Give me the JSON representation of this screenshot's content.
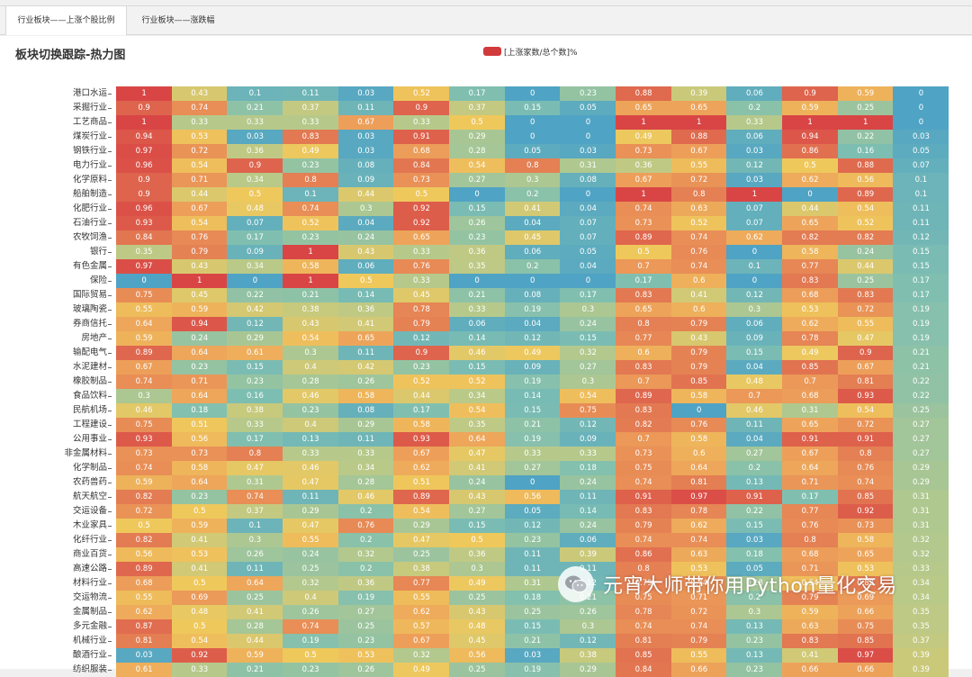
{
  "tabs": [
    {
      "label": "行业板块——上涨个股比例",
      "active": true
    },
    {
      "label": "行业板块——涨跌幅",
      "active": false
    }
  ],
  "page_title": "板块切换跟踪-热力图",
  "legend": {
    "label": "[上涨家数/总个数]%",
    "color": "#d13a3a"
  },
  "watermark": "元宵大师带你用Python量化交易",
  "palette": [
    "#4fa3c4",
    "#7fbfb1",
    "#b7c98a",
    "#efc85c",
    "#eda05a",
    "#e27852",
    "#d94545"
  ],
  "chart_data": {
    "type": "heatmap",
    "value_range": [
      0,
      1
    ],
    "rows": [
      "港口水运",
      "采掘行业",
      "工艺商品",
      "煤炭行业",
      "钢铁行业",
      "电力行业",
      "化学原料",
      "船舶制造",
      "化肥行业",
      "石油行业",
      "农牧饲渔",
      "银行",
      "有色金属",
      "保险",
      "国际贸易",
      "玻璃陶瓷",
      "券商信托",
      "房地产",
      "输配电气",
      "水泥建材",
      "橡胶制品",
      "食品饮料",
      "民航机场",
      "工程建设",
      "公用事业",
      "非金属材料",
      "化学制品",
      "农药兽药",
      "航天航空",
      "交运设备",
      "木业家具",
      "化纤行业",
      "商业百货",
      "高速公路",
      "材料行业",
      "交运物流",
      "金属制品",
      "多元金融",
      "机械行业",
      "酿酒行业",
      "纺织服装"
    ],
    "values": [
      [
        1,
        0.43,
        0.1,
        0.11,
        0.03,
        0.52,
        0.17,
        0,
        0.23,
        0.88,
        0.39,
        0.06,
        0.9,
        0.59,
        0
      ],
      [
        0.9,
        0.74,
        0.21,
        0.37,
        0.11,
        0.9,
        0.37,
        0.15,
        0.05,
        0.65,
        0.65,
        0.2,
        0.59,
        0.25,
        0
      ],
      [
        1,
        0.33,
        0.33,
        0.33,
        0.67,
        0.33,
        0.5,
        0,
        0,
        1,
        1,
        0.33,
        1,
        1,
        0
      ],
      [
        0.94,
        0.53,
        0.03,
        0.83,
        0.03,
        0.91,
        0.29,
        0,
        0,
        0.49,
        0.88,
        0.06,
        0.94,
        0.22,
        0.03
      ],
      [
        0.97,
        0.72,
        0.36,
        0.49,
        0.03,
        0.68,
        0.28,
        0.05,
        0.03,
        0.73,
        0.67,
        0.03,
        0.86,
        0.16,
        0.05
      ],
      [
        0.96,
        0.54,
        0.9,
        0.23,
        0.08,
        0.84,
        0.54,
        0.8,
        0.31,
        0.36,
        0.55,
        0.12,
        0.5,
        0.88,
        0.07
      ],
      [
        0.9,
        0.71,
        0.34,
        0.8,
        0.09,
        0.73,
        0.27,
        0.3,
        0.08,
        0.67,
        0.72,
        0.03,
        0.62,
        0.56,
        0.1
      ],
      [
        0.9,
        0.44,
        0.5,
        0.1,
        0.44,
        0.5,
        0,
        0.2,
        0,
        1,
        0.8,
        1,
        0,
        0.89,
        0.1
      ],
      [
        0.96,
        0.67,
        0.48,
        0.74,
        0.3,
        0.92,
        0.15,
        0.41,
        0.04,
        0.74,
        0.63,
        0.07,
        0.44,
        0.54,
        0.11
      ],
      [
        0.93,
        0.54,
        0.07,
        0.52,
        0.04,
        0.92,
        0.26,
        0.04,
        0.07,
        0.73,
        0.52,
        0.07,
        0.65,
        0.52,
        0.11
      ],
      [
        0.84,
        0.76,
        0.17,
        0.23,
        0.24,
        0.65,
        0.23,
        0.45,
        0.07,
        0.89,
        0.74,
        0.62,
        0.82,
        0.82,
        0.12
      ],
      [
        0.35,
        0.79,
        0.09,
        1,
        0.43,
        0.33,
        0.36,
        0.06,
        0.05,
        0.5,
        0.76,
        0,
        0.58,
        0.24,
        0.15
      ],
      [
        0.97,
        0.43,
        0.34,
        0.58,
        0.06,
        0.76,
        0.35,
        0.2,
        0.04,
        0.7,
        0.74,
        0.1,
        0.77,
        0.44,
        0.15
      ],
      [
        0,
        1,
        0,
        1,
        0.5,
        0.33,
        0,
        0,
        0,
        0.17,
        0.6,
        0,
        0.83,
        0.25,
        0.17
      ],
      [
        0.75,
        0.45,
        0.22,
        0.21,
        0.14,
        0.45,
        0.21,
        0.08,
        0.17,
        0.83,
        0.41,
        0.12,
        0.68,
        0.83,
        0.17
      ],
      [
        0.55,
        0.59,
        0.42,
        0.38,
        0.36,
        0.78,
        0.33,
        0.19,
        0.3,
        0.65,
        0.6,
        0.3,
        0.53,
        0.72,
        0.19
      ],
      [
        0.64,
        0.94,
        0.12,
        0.43,
        0.41,
        0.79,
        0.06,
        0.04,
        0.24,
        0.8,
        0.79,
        0.06,
        0.62,
        0.55,
        0.19
      ],
      [
        0.59,
        0.24,
        0.29,
        0.54,
        0.65,
        0.12,
        0.14,
        0.12,
        0.15,
        0.77,
        0.43,
        0.09,
        0.78,
        0.47,
        0.19
      ],
      [
        0.89,
        0.64,
        0.61,
        0.3,
        0.11,
        0.9,
        0.46,
        0.49,
        0.32,
        0.6,
        0.79,
        0.15,
        0.49,
        0.9,
        0.21
      ],
      [
        0.67,
        0.23,
        0.15,
        0.4,
        0.42,
        0.23,
        0.15,
        0.09,
        0.27,
        0.83,
        0.79,
        0.04,
        0.85,
        0.67,
        0.21
      ],
      [
        0.74,
        0.71,
        0.23,
        0.28,
        0.26,
        0.52,
        0.52,
        0.19,
        0.3,
        0.7,
        0.85,
        0.48,
        0.7,
        0.81,
        0.22
      ],
      [
        0.3,
        0.64,
        0.16,
        0.46,
        0.58,
        0.44,
        0.34,
        0.14,
        0.54,
        0.89,
        0.58,
        0.7,
        0.68,
        0.93,
        0.22
      ],
      [
        0.46,
        0.18,
        0.38,
        0.23,
        0.08,
        0.17,
        0.54,
        0.15,
        0.75,
        0.83,
        0,
        0.46,
        0.31,
        0.54,
        0.25
      ],
      [
        0.75,
        0.51,
        0.33,
        0.4,
        0.29,
        0.58,
        0.35,
        0.21,
        0.12,
        0.82,
        0.76,
        0.11,
        0.65,
        0.72,
        0.27
      ],
      [
        0.93,
        0.56,
        0.17,
        0.13,
        0.11,
        0.93,
        0.64,
        0.19,
        0.09,
        0.7,
        0.58,
        0.04,
        0.91,
        0.91,
        0.27
      ],
      [
        0.73,
        0.73,
        0.8,
        0.33,
        0.33,
        0.67,
        0.47,
        0.33,
        0.33,
        0.73,
        0.6,
        0.27,
        0.67,
        0.8,
        0.27
      ],
      [
        0.74,
        0.58,
        0.47,
        0.46,
        0.34,
        0.62,
        0.41,
        0.27,
        0.18,
        0.75,
        0.64,
        0.2,
        0.64,
        0.76,
        0.29
      ],
      [
        0.59,
        0.64,
        0.31,
        0.47,
        0.28,
        0.51,
        0.24,
        0,
        0.24,
        0.74,
        0.81,
        0.13,
        0.71,
        0.74,
        0.29
      ],
      [
        0.82,
        0.23,
        0.74,
        0.11,
        0.46,
        0.89,
        0.43,
        0.56,
        0.11,
        0.91,
        0.97,
        0.91,
        0.17,
        0.85,
        0.31
      ],
      [
        0.72,
        0.5,
        0.37,
        0.29,
        0.2,
        0.54,
        0.27,
        0.05,
        0.14,
        0.83,
        0.78,
        0.22,
        0.77,
        0.92,
        0.31
      ],
      [
        0.5,
        0.59,
        0.1,
        0.47,
        0.76,
        0.29,
        0.15,
        0.12,
        0.24,
        0.79,
        0.62,
        0.15,
        0.76,
        0.73,
        0.31
      ],
      [
        0.82,
        0.41,
        0.3,
        0.55,
        0.2,
        0.47,
        0.5,
        0.23,
        0.06,
        0.74,
        0.74,
        0.03,
        0.8,
        0.58,
        0.32
      ],
      [
        0.56,
        0.53,
        0.26,
        0.24,
        0.32,
        0.25,
        0.36,
        0.11,
        0.39,
        0.86,
        0.63,
        0.18,
        0.68,
        0.65,
        0.32
      ],
      [
        0.89,
        0.41,
        0.11,
        0.25,
        0.2,
        0.38,
        0.3,
        0.11,
        0.11,
        0.8,
        0.53,
        0.05,
        0.71,
        0.53,
        0.33
      ],
      [
        0.68,
        0.5,
        0.64,
        0.32,
        0.36,
        0.77,
        0.49,
        0.31,
        0.12,
        0.79,
        0.74,
        0.28,
        0.54,
        0.82,
        0.34
      ],
      [
        0.55,
        0.69,
        0.25,
        0.4,
        0.19,
        0.55,
        0.25,
        0.18,
        0.21,
        0.75,
        0.71,
        0.2,
        0.79,
        0.69,
        0.34
      ],
      [
        0.62,
        0.48,
        0.41,
        0.26,
        0.27,
        0.62,
        0.43,
        0.25,
        0.26,
        0.78,
        0.72,
        0.3,
        0.59,
        0.66,
        0.35
      ],
      [
        0.87,
        0.5,
        0.28,
        0.74,
        0.25,
        0.57,
        0.48,
        0.15,
        0.3,
        0.74,
        0.74,
        0.13,
        0.63,
        0.75,
        0.35
      ],
      [
        0.81,
        0.54,
        0.44,
        0.19,
        0.23,
        0.67,
        0.45,
        0.21,
        0.12,
        0.81,
        0.79,
        0.23,
        0.83,
        0.85,
        0.37
      ],
      [
        0.03,
        0.92,
        0.59,
        0.5,
        0.53,
        0.32,
        0.56,
        0.03,
        0.38,
        0.85,
        0.55,
        0.13,
        0.41,
        0.97,
        0.39
      ],
      [
        0.61,
        0.33,
        0.21,
        0.23,
        0.26,
        0.49,
        0.25,
        0.19,
        0.29,
        0.84,
        0.66,
        0.23,
        0.66,
        0.66,
        0.39
      ]
    ]
  }
}
